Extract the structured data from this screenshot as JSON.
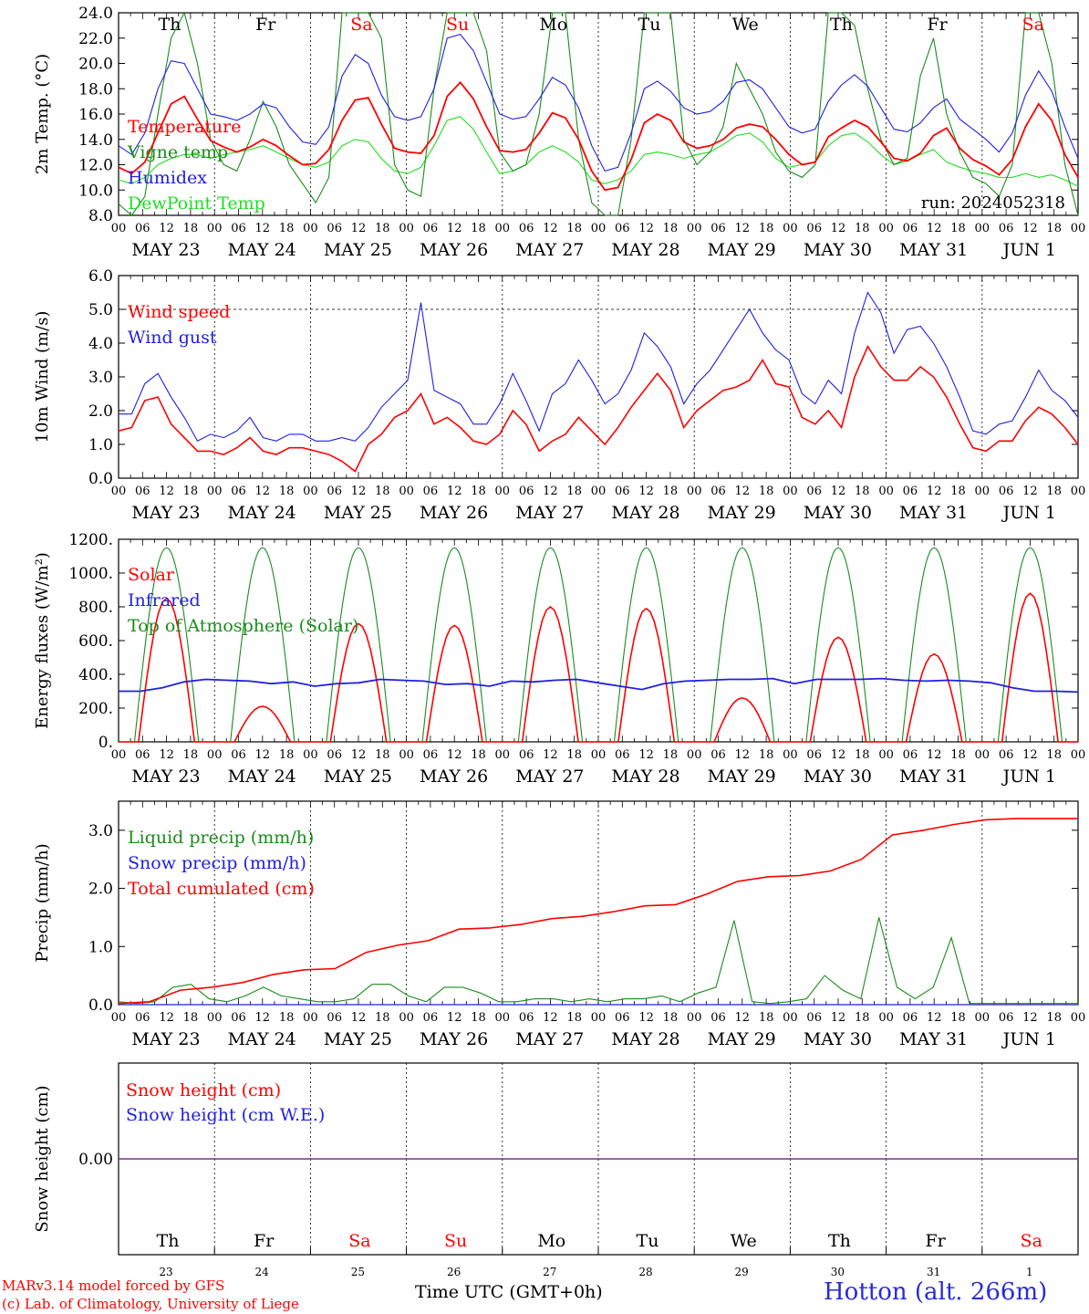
{
  "footer": {
    "model_line": "MARv3.14 model forced by GFS",
    "lab_line": "(c) Lab. of Climatology, University of Liege",
    "time_label": "Time UTC (GMT+0h)",
    "location": "Hotton (alt. 266m)"
  },
  "run_label": "run: 2024052318",
  "weekdays": [
    "Th",
    "Fr",
    "Sa",
    "Su",
    "Mo",
    "Tu",
    "We",
    "Th",
    "Fr",
    "Sa"
  ],
  "weekend_flags": [
    false,
    false,
    true,
    true,
    false,
    false,
    false,
    false,
    false,
    true
  ],
  "date_labels": [
    "MAY 23",
    "MAY 24",
    "MAY 25",
    "MAY 26",
    "MAY 27",
    "MAY 28",
    "MAY 29",
    "MAY 30",
    "MAY 31",
    "JUN  1"
  ],
  "day_numbers": [
    "23",
    "24",
    "25",
    "26",
    "27",
    "28",
    "29",
    "30",
    "31",
    "1"
  ],
  "hour_ticks": [
    "00",
    "06",
    "12",
    "18"
  ],
  "colors": {
    "red": "#ff0000",
    "green": "#1a8c1a",
    "blue": "#2020e0",
    "light_green": "#22dd22",
    "purple": "#7b2d8b",
    "weekend": "#ff0000"
  },
  "chart_data": [
    {
      "type": "line",
      "ylabel": "2m Temp. (°C)",
      "ylim": [
        8,
        24
      ],
      "yticks": [
        "8.0",
        "10.0",
        "12.0",
        "14.0",
        "16.0",
        "18.0",
        "20.0",
        "22.0",
        "24.0"
      ],
      "x_days": 10,
      "series": [
        {
          "name": "Temperature",
          "color": "#ff0000",
          "values": [
            11.8,
            11.3,
            12.2,
            14.5,
            16.8,
            17.4,
            15.6,
            13.9,
            13.4,
            13.0,
            13.4,
            14.0,
            13.5,
            12.7,
            12.0,
            12.1,
            13.2,
            15.5,
            17.1,
            17.3,
            15.2,
            13.3,
            13.0,
            12.9,
            14.3,
            17.4,
            18.5,
            17.2,
            15.0,
            13.1,
            13.0,
            13.2,
            14.5,
            16.1,
            15.7,
            14.0,
            11.5,
            10.0,
            10.2,
            12.4,
            15.3,
            16.0,
            15.5,
            13.8,
            13.3,
            13.5,
            14.0,
            14.9,
            15.2,
            15.0,
            14.0,
            12.8,
            12.0,
            12.2,
            14.2,
            14.9,
            15.5,
            15.0,
            13.8,
            12.5,
            12.3,
            12.9,
            14.3,
            14.9,
            13.3,
            12.4,
            11.9,
            11.2,
            12.4,
            15.0,
            16.8,
            15.5,
            12.8,
            11.0
          ]
        },
        {
          "name": "Vigne temp",
          "color": "#1a8c1a",
          "values": [
            8.9,
            7.5,
            9.5,
            16.0,
            22.0,
            24.0,
            20.0,
            14.0,
            12.0,
            11.5,
            14.0,
            17.0,
            15.0,
            12.0,
            10.5,
            9.0,
            11.0,
            24.0,
            24.0,
            24.0,
            22.0,
            12.0,
            10.0,
            9.5,
            18.0,
            24.0,
            24.0,
            24.0,
            21.0,
            13.0,
            11.5,
            12.0,
            16.0,
            24.0,
            24.0,
            14.0,
            9.0,
            7.0,
            8.0,
            14.0,
            24.0,
            24.0,
            24.0,
            14.0,
            12.0,
            13.0,
            15.0,
            20.0,
            18.0,
            16.0,
            13.0,
            11.5,
            11.0,
            12.0,
            24.0,
            24.0,
            23.0,
            18.0,
            14.0,
            12.0,
            12.5,
            19.0,
            22.0,
            16.0,
            13.0,
            11.0,
            10.5,
            9.5,
            12.0,
            24.0,
            24.0,
            20.0,
            12.0,
            8.0
          ]
        },
        {
          "name": "Humidex",
          "color": "#2020e0",
          "values": [
            13.5,
            12.8,
            14.5,
            18.0,
            20.2,
            20.0,
            18.0,
            16.0,
            15.8,
            15.5,
            16.0,
            16.8,
            16.5,
            15.0,
            13.8,
            13.6,
            15.0,
            19.0,
            20.7,
            20.0,
            17.5,
            15.8,
            15.5,
            15.8,
            18.0,
            22.0,
            22.3,
            21.0,
            18.5,
            16.0,
            15.6,
            15.8,
            17.2,
            18.9,
            18.3,
            16.5,
            13.5,
            11.5,
            11.8,
            14.5,
            18.0,
            18.6,
            17.8,
            16.5,
            16.0,
            16.2,
            17.0,
            18.5,
            18.7,
            18.0,
            16.5,
            15.0,
            14.5,
            14.8,
            17.0,
            18.3,
            19.1,
            18.2,
            16.5,
            14.8,
            14.6,
            15.3,
            16.5,
            17.2,
            15.6,
            14.8,
            14.0,
            13.0,
            14.5,
            17.5,
            19.4,
            17.8,
            15.0,
            12.5
          ]
        },
        {
          "name": "DewPoint Temp",
          "color": "#22dd22",
          "values": [
            10.8,
            10.5,
            11.0,
            12.0,
            12.5,
            12.8,
            12.8,
            12.5,
            12.8,
            13.0,
            13.2,
            13.5,
            13.0,
            12.5,
            12.0,
            11.8,
            12.2,
            13.5,
            14.0,
            13.8,
            12.5,
            11.5,
            11.3,
            11.8,
            13.5,
            15.5,
            15.8,
            14.8,
            13.0,
            11.3,
            11.5,
            12.0,
            13.0,
            13.5,
            13.0,
            12.2,
            10.8,
            10.5,
            10.8,
            11.5,
            12.8,
            13.0,
            12.8,
            12.5,
            12.8,
            13.0,
            13.6,
            14.3,
            14.5,
            13.8,
            12.5,
            11.8,
            12.0,
            12.2,
            13.5,
            14.3,
            14.5,
            13.8,
            12.8,
            12.0,
            12.3,
            12.8,
            13.2,
            12.2,
            11.8,
            11.5,
            11.3,
            11.0,
            11.0,
            11.3,
            11.0,
            11.2,
            10.8,
            10.3
          ]
        }
      ],
      "legend": [
        "Temperature",
        "Vigne temp",
        "Humidex",
        "DewPoint Temp"
      ]
    },
    {
      "type": "line",
      "ylabel": "10m Wind (m/s)",
      "ylim": [
        0,
        6
      ],
      "yticks": [
        "0.0",
        "1.0",
        "2.0",
        "3.0",
        "4.0",
        "5.0",
        "6.0"
      ],
      "hline": 5.0,
      "series": [
        {
          "name": "Wind speed",
          "color": "#ff0000",
          "values": [
            1.4,
            1.5,
            2.3,
            2.4,
            1.6,
            1.2,
            0.8,
            0.8,
            0.7,
            0.9,
            1.2,
            0.8,
            0.7,
            0.9,
            0.9,
            0.8,
            0.7,
            0.5,
            0.2,
            1.0,
            1.3,
            1.8,
            2.0,
            2.5,
            1.6,
            1.8,
            1.5,
            1.1,
            1.0,
            1.3,
            2.0,
            1.6,
            0.8,
            1.1,
            1.3,
            1.8,
            1.4,
            1.0,
            1.5,
            2.1,
            2.6,
            3.1,
            2.6,
            1.5,
            2.0,
            2.3,
            2.6,
            2.7,
            2.9,
            3.5,
            2.8,
            2.7,
            1.8,
            1.6,
            2.0,
            1.5,
            3.0,
            3.9,
            3.3,
            2.9,
            2.9,
            3.3,
            3.0,
            2.4,
            1.6,
            0.9,
            0.8,
            1.1,
            1.1,
            1.7,
            2.1,
            1.9,
            1.5,
            1.0
          ]
        },
        {
          "name": "Wind gust",
          "color": "#2020e0",
          "values": [
            1.9,
            1.9,
            2.8,
            3.1,
            2.4,
            1.8,
            1.1,
            1.3,
            1.2,
            1.4,
            1.8,
            1.2,
            1.1,
            1.3,
            1.3,
            1.1,
            1.1,
            1.2,
            1.1,
            1.5,
            2.1,
            2.5,
            2.9,
            5.2,
            2.6,
            2.4,
            2.2,
            1.6,
            1.6,
            2.2,
            3.1,
            2.3,
            1.4,
            2.5,
            2.8,
            3.5,
            2.9,
            2.2,
            2.5,
            3.2,
            4.3,
            3.9,
            3.3,
            2.2,
            2.8,
            3.2,
            3.8,
            4.4,
            5.0,
            4.3,
            3.8,
            3.5,
            2.5,
            2.2,
            2.9,
            2.5,
            4.3,
            5.5,
            4.9,
            3.7,
            4.4,
            4.5,
            4.0,
            3.3,
            2.4,
            1.4,
            1.3,
            1.6,
            1.7,
            2.4,
            3.2,
            2.6,
            2.3,
            1.8
          ]
        }
      ],
      "legend": [
        "Wind speed",
        "Wind gust"
      ]
    },
    {
      "type": "line",
      "ylabel": "Energy fluxes (W/m²)",
      "ylim": [
        0,
        1200
      ],
      "yticks": [
        "0.",
        "200.",
        "400.",
        "600.",
        "800.",
        "1000.",
        "1200."
      ],
      "series": [
        {
          "name": "Solar",
          "color": "#ff0000",
          "peaks": [
            850,
            210,
            700,
            690,
            800,
            790,
            260,
            620,
            520,
            880
          ]
        },
        {
          "name": "Infrared",
          "color": "#2020e0",
          "values": [
            300,
            300,
            320,
            355,
            370,
            365,
            360,
            345,
            355,
            330,
            345,
            350,
            370,
            365,
            360,
            340,
            345,
            330,
            360,
            355,
            365,
            370,
            350,
            330,
            310,
            345,
            360,
            365,
            370,
            370,
            375,
            345,
            370,
            370,
            370,
            375,
            365,
            360,
            365,
            360,
            350,
            320,
            300,
            300,
            295
          ]
        },
        {
          "name": "Top of Atmosphere (Solar)",
          "color": "#1a8c1a",
          "peak": 1150
        }
      ],
      "legend": [
        "Solar",
        "Infrared",
        "Top of Atmosphere (Solar)"
      ]
    },
    {
      "type": "line",
      "ylabel": "Precip (mm/h)",
      "ylim": [
        0,
        3.5
      ],
      "yticks": [
        "0.0",
        "1.0",
        "2.0",
        "3.0"
      ],
      "series": [
        {
          "name": "Liquid precip (mm/h)",
          "color": "#1a8c1a",
          "values": [
            0.05,
            0.02,
            0.05,
            0.3,
            0.35,
            0.1,
            0.05,
            0.15,
            0.3,
            0.15,
            0.1,
            0.05,
            0.05,
            0.1,
            0.35,
            0.35,
            0.15,
            0.05,
            0.3,
            0.3,
            0.2,
            0.05,
            0.05,
            0.1,
            0.1,
            0.05,
            0.1,
            0.05,
            0.1,
            0.1,
            0.15,
            0.05,
            0.2,
            0.3,
            1.45,
            0.05,
            0.02,
            0.05,
            0.1,
            0.5,
            0.25,
            0.1,
            1.5,
            0.3,
            0.1,
            0.3,
            1.15,
            0.02,
            0.02,
            0.02,
            0.02,
            0.02,
            0.02,
            0.02
          ]
        },
        {
          "name": "Snow precip (mm/h)",
          "color": "#2020e0",
          "values": [
            0,
            0
          ]
        },
        {
          "name": "Total cumulated (cm)",
          "color": "#ff0000",
          "values": [
            0.02,
            0.05,
            0.25,
            0.3,
            0.38,
            0.52,
            0.6,
            0.62,
            0.9,
            1.02,
            1.1,
            1.3,
            1.32,
            1.38,
            1.48,
            1.52,
            1.6,
            1.7,
            1.72,
            1.9,
            2.12,
            2.2,
            2.22,
            2.3,
            2.5,
            2.92,
            3.0,
            3.1,
            3.18,
            3.2,
            3.2,
            3.2
          ]
        }
      ],
      "legend": [
        "Liquid precip (mm/h)",
        "Snow precip (mm/h)",
        "Total cumulated (cm)"
      ]
    },
    {
      "type": "line",
      "ylabel": "Snow height (cm)",
      "yticks": [
        "0.00"
      ],
      "series": [
        {
          "name": "Snow height (cm)",
          "color": "#ff0000",
          "values": [
            0,
            0
          ]
        },
        {
          "name": "Snow height (cm W.E.)",
          "color": "#2020e0",
          "values": [
            0,
            0
          ]
        }
      ],
      "legend": [
        "Snow height (cm)",
        "Snow height (cm W.E.)"
      ]
    }
  ]
}
